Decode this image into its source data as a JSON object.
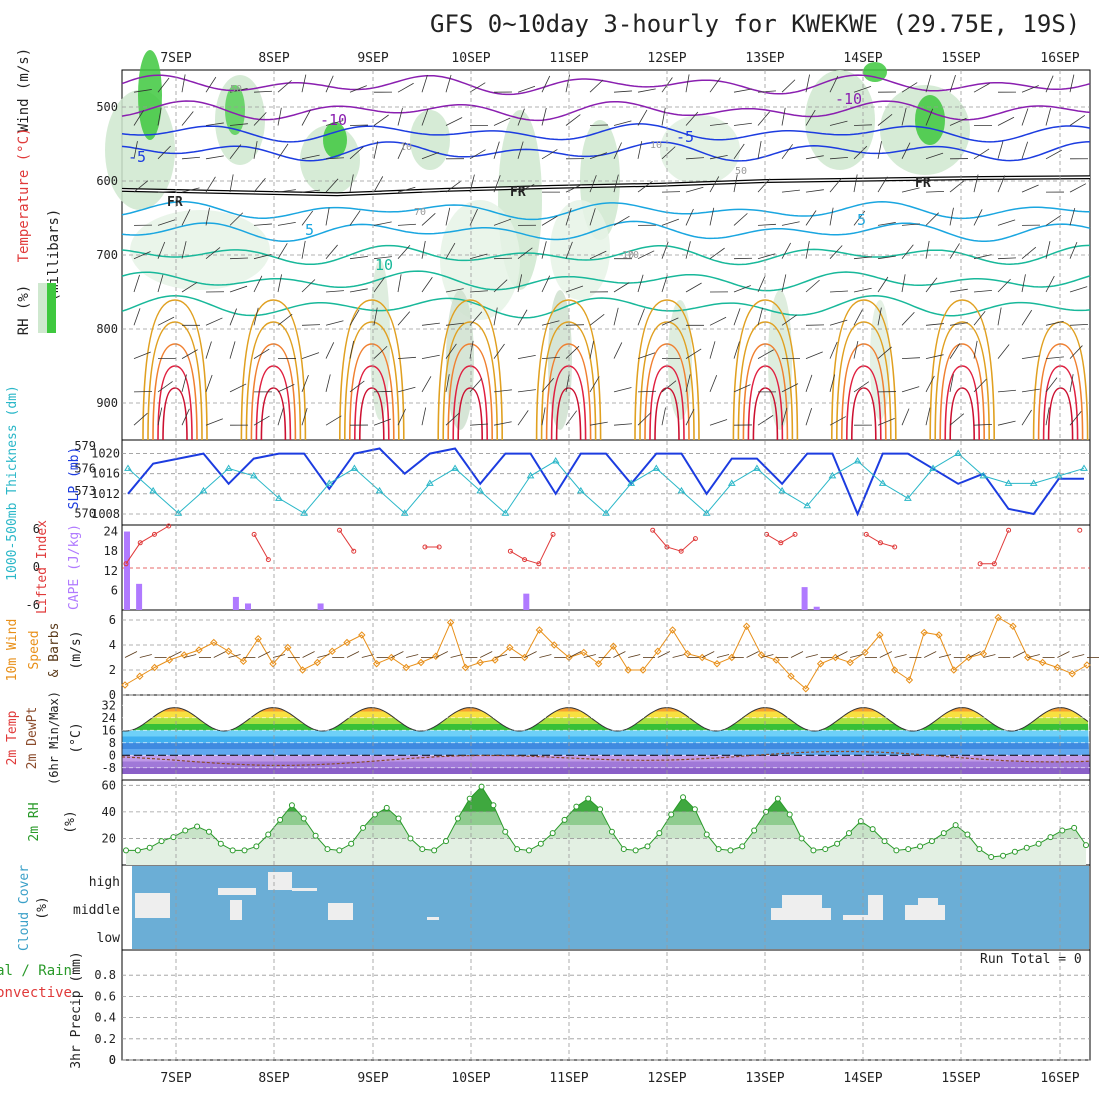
{
  "title": "GFS 0~10day 3-hourly for KWEKWE (29.75E, 19S)",
  "run_total": "Run Total = 0",
  "colors": {
    "rh_green": "#2fb52f",
    "temp_purple": "#8a1fb0",
    "temp_blue": "#1c3ce0",
    "temp_cyan": "#1aa6e0",
    "temp_teal": "#18b89a",
    "temp_orange": "#e0a020",
    "temp_red": "#e02040",
    "slp": "#1c3ce0",
    "thickness": "#2ab7c8",
    "lifted": "#e03a3a",
    "cape": "#b07aff",
    "wind": "#e8901a",
    "rh2m": "#2a9a2a",
    "cloud": "#6baed6",
    "grid": "#999999"
  },
  "chart_data": [
    {
      "id": "upper_air",
      "type": "heatmap",
      "xlabels": [
        "7SEP",
        "8SEP",
        "9SEP",
        "10SEP",
        "11SEP",
        "12SEP",
        "13SEP",
        "14SEP",
        "15SEP",
        "16SEP"
      ],
      "ylabel": "(millibars)",
      "yticks": [
        500,
        600,
        700,
        800,
        900
      ],
      "ylim": [
        950,
        450
      ],
      "legend": [
        "RH (%)",
        "Temperature (°C)",
        "Wind (m/s)"
      ],
      "isotherm_labels": [
        "-10",
        "-5",
        "FR",
        "5",
        "10"
      ],
      "freezing_level_mb": [
        612,
        615,
        618,
        612,
        608,
        605,
        600,
        598,
        596,
        595
      ],
      "annotation_values": [
        "50",
        "10",
        "70",
        "10",
        "50",
        "10",
        "70"
      ]
    },
    {
      "id": "slp_thickness",
      "type": "line",
      "ylabel_left": "1000-500mb Thickness (dm)",
      "ylabel_right": "SLP (mb)",
      "yticks_left": [
        570,
        573,
        576,
        579
      ],
      "yticks_right": [
        1008,
        1012,
        1016,
        1020
      ],
      "series": [
        {
          "name": "SLP",
          "values": [
            1012,
            1018,
            1019,
            1020,
            1014,
            1019,
            1020,
            1020,
            1013,
            1020,
            1021,
            1016,
            1020,
            1021,
            1014,
            1020,
            1020,
            1012,
            1020,
            1020,
            1014,
            1020,
            1020,
            1012,
            1019,
            1019,
            1014,
            1020,
            1020,
            1008,
            1020,
            1020,
            1017,
            1014,
            1016,
            1009,
            1008,
            1015,
            1015
          ]
        },
        {
          "name": "Thickness",
          "values": [
            576,
            573,
            570,
            573,
            576,
            575,
            572,
            570,
            574,
            576,
            573,
            570,
            574,
            576,
            573,
            570,
            575,
            577,
            573,
            570,
            574,
            576,
            573,
            570,
            574,
            576,
            573,
            571,
            575,
            577,
            574,
            572,
            576,
            578,
            575,
            574,
            574,
            575,
            576
          ]
        }
      ]
    },
    {
      "id": "cape_lifted",
      "type": "bar",
      "ylabel_left": "Lifted Index",
      "ylabel_right": "CAPE (J/kg)",
      "yticks_left": [
        "6",
        "0",
        "-6"
      ],
      "yticks_right": [
        6,
        12,
        18,
        24
      ],
      "cape_values": [
        24,
        8,
        0,
        0,
        0,
        0,
        0,
        0,
        0,
        4,
        2,
        0,
        0,
        0,
        0,
        0,
        2,
        0,
        0,
        0,
        0,
        0,
        0,
        0,
        0,
        0,
        0,
        0,
        0,
        0,
        0,
        0,
        0,
        5,
        0,
        0,
        0,
        0,
        0,
        0,
        0,
        0,
        0,
        0,
        0,
        0,
        0,
        0,
        0,
        0,
        0,
        0,
        0,
        0,
        0,
        0,
        7,
        1,
        0,
        0,
        0,
        0,
        0,
        0,
        0,
        0,
        0,
        0,
        0,
        0,
        0,
        0,
        0,
        0,
        0,
        0,
        0,
        0,
        0,
        0
      ],
      "lifted_values": [
        -1,
        -6,
        -8,
        -10,
        null,
        null,
        null,
        null,
        null,
        -8,
        -2,
        null,
        null,
        null,
        null,
        -9,
        -4,
        null,
        null,
        null,
        null,
        -5,
        -5,
        null,
        null,
        null,
        null,
        -4,
        -2,
        -1,
        -8,
        null,
        null,
        null,
        null,
        null,
        null,
        -9,
        -5,
        -4,
        -7,
        null,
        null,
        null,
        null,
        -8,
        -6,
        -8,
        null,
        null,
        null,
        null,
        -8,
        -6,
        -5,
        null,
        null,
        null,
        null,
        null,
        -1,
        -1,
        -9,
        null,
        null,
        null,
        null,
        -9
      ]
    },
    {
      "id": "wind10m",
      "type": "line",
      "ylabel": "10m Wind Speed & Barbs (m/s)",
      "yticks": [
        0,
        2,
        4,
        6
      ],
      "values": [
        0.8,
        1.5,
        2.2,
        2.8,
        3.2,
        3.6,
        4.2,
        3.5,
        2.7,
        4.5,
        2.5,
        3.8,
        2.0,
        2.6,
        3.5,
        4.2,
        4.8,
        2.5,
        3.0,
        2.2,
        2.6,
        3.1,
        5.8,
        2.2,
        2.6,
        2.8,
        3.8,
        3.0,
        5.2,
        4.0,
        3.0,
        3.4,
        2.5,
        3.9,
        2.0,
        2.0,
        3.5,
        5.2,
        3.3,
        3.0,
        2.5,
        3.0,
        5.5,
        3.2,
        2.8,
        1.5,
        0.5,
        2.5,
        3.0,
        2.6,
        3.4,
        4.8,
        2.0,
        1.2,
        5.0,
        4.8,
        2.0,
        3.0,
        3.3,
        6.2,
        5.5,
        3.0,
        2.6,
        2.2,
        1.7,
        2.4
      ]
    },
    {
      "id": "temp2m",
      "type": "area",
      "ylabel": "2m Temp 2m DewPt (6hr Min/Max) (°C)",
      "yticks": [
        -8,
        0,
        8,
        16,
        24,
        32
      ],
      "temp_max": [
        28,
        30,
        30,
        30,
        30,
        30,
        30,
        32,
        31
      ],
      "temp_min": [
        16,
        15,
        15,
        15,
        15,
        15,
        15,
        15,
        15
      ],
      "dewpoint": [
        -3,
        -1,
        -2,
        0,
        -1,
        -2,
        -3,
        -3,
        -5
      ]
    },
    {
      "id": "rh2m",
      "type": "area",
      "ylabel": "2m RH (%)",
      "yticks": [
        20,
        40,
        60
      ],
      "values": [
        11,
        11,
        13,
        18,
        21,
        26,
        29,
        25,
        16,
        11,
        11,
        14,
        23,
        34,
        45,
        35,
        22,
        12,
        11,
        16,
        28,
        38,
        43,
        35,
        20,
        12,
        11,
        18,
        35,
        50,
        59,
        45,
        25,
        12,
        11,
        16,
        24,
        34,
        44,
        50,
        42,
        25,
        12,
        11,
        14,
        24,
        38,
        51,
        42,
        23,
        12,
        11,
        14,
        26,
        40,
        50,
        38,
        20,
        11,
        12,
        16,
        24,
        33,
        27,
        18,
        11,
        12,
        14,
        18,
        24,
        30,
        23,
        12,
        6,
        7,
        10,
        13,
        16,
        21,
        26,
        28,
        15
      ]
    },
    {
      "id": "cloud_cover",
      "type": "bar",
      "ylabel": "Cloud Cover (%)",
      "levels": [
        "high",
        "middle",
        "low"
      ],
      "high_label": "high",
      "middle_label": "middle",
      "low_label": "low"
    },
    {
      "id": "precip",
      "type": "bar",
      "ylabel": "3hr Precip (mm)",
      "legend": [
        "Total / Rain",
        "Convective"
      ],
      "yticks": [
        0,
        0.2,
        0.4,
        0.6,
        0.8
      ],
      "ylim": [
        0,
        1
      ],
      "values": [
        0,
        0,
        0,
        0,
        0,
        0,
        0,
        0,
        0,
        0,
        0,
        0,
        0,
        0,
        0,
        0,
        0,
        0,
        0,
        0,
        0,
        0,
        0,
        0,
        0,
        0,
        0,
        0,
        0,
        0,
        0,
        0,
        0,
        0,
        0,
        0,
        0,
        0,
        0,
        0,
        0,
        0,
        0,
        0,
        0,
        0,
        0,
        0,
        0,
        0,
        0,
        0,
        0,
        0,
        0,
        0,
        0,
        0,
        0,
        0,
        0,
        0,
        0,
        0,
        0,
        0,
        0,
        0,
        0,
        0,
        0,
        0,
        0,
        0,
        0,
        0,
        0,
        0,
        0,
        0,
        0
      ]
    }
  ],
  "labels": {
    "ua_wind": "Wind (m/s)",
    "ua_temp": "Temperature (°C)",
    "ua_rh": "RH (%)",
    "ua_mb": "(millibars)",
    "slp_lbl": "SLP (mb)",
    "thick_lbl": "1000-500mb Thickness (dm)",
    "li_lbl": "Lifted Index",
    "cape_lbl": "CAPE (J/kg)",
    "wind_lbl1": "10m Wind",
    "wind_lbl2": "Speed",
    "wind_lbl3": "& Barbs",
    "wind_unit": "(m/s)",
    "t_lbl1": "2m Temp",
    "t_lbl2": "2m DewPt",
    "t_lbl3": "(6hr Min/Max)",
    "t_unit": "(°C)",
    "rh_lbl": "2m RH",
    "rh_unit": "(%)",
    "cc_lbl": "Cloud Cover",
    "cc_unit": "(%)",
    "pr_lbl": "3hr Precip (mm)",
    "pr_total": "Total / Rain",
    "pr_conv": "Convective"
  }
}
